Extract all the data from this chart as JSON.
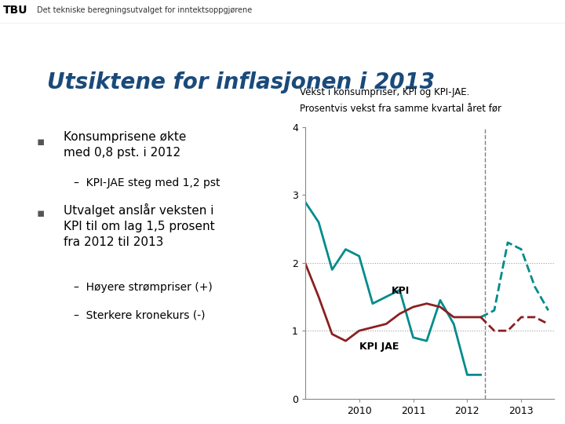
{
  "title_main": "Utsiktene for inflasjonen i 2013",
  "header_bold": "TBU",
  "header_text": "Det tekniske beregningsutvalget for inntektsoppgjørene",
  "bg_color": "#f0f4f8",
  "slide_bg": "#ffffff",
  "left_panel_bg": "#ffffff",
  "bullet1_main": "Konsumprisene økte\nmed 0,8 pst. i 2012",
  "bullet1_sub": "KPI-JAE steg med 1,2 pst",
  "bullet2_main": "Utvalget anslår veksten i\nKPI til om lag 1,5 prosent\nfra 2012 til 2013",
  "bullet2_sub1": "Høyere strømpriser (+)",
  "bullet2_sub2": "Sterkere kronekurs (-)",
  "chart_title_line1": "Vekst i konsumpriser, KPI og KPI-JAE.",
  "chart_title_line2": "Prosentvis vekst fra samme kvartal året før",
  "kpi_color": "#008B8B",
  "kpi_jae_color": "#8B2020",
  "kpi_forecast_color": "#008B8B",
  "kpi_jae_forecast_color": "#8B2020",
  "vline_color": "#808080",
  "grid_color": "#a0a0a0",
  "title_color": "#1a4a7a",
  "kpi_x": [
    2009.0,
    2009.25,
    2009.5,
    2009.75,
    2010.0,
    2010.25,
    2010.5,
    2010.75,
    2011.0,
    2011.25,
    2011.5,
    2011.75,
    2012.0,
    2012.25
  ],
  "kpi_y": [
    2.9,
    2.6,
    1.9,
    2.2,
    2.1,
    1.4,
    1.5,
    1.6,
    0.9,
    0.85,
    1.45,
    1.1,
    0.35,
    0.35
  ],
  "kpi_jae_x": [
    2009.0,
    2009.25,
    2009.5,
    2009.75,
    2010.0,
    2010.25,
    2010.5,
    2010.75,
    2011.0,
    2011.25,
    2011.5,
    2011.75,
    2012.0,
    2012.25
  ],
  "kpi_jae_y": [
    2.0,
    1.5,
    0.95,
    0.85,
    1.0,
    1.05,
    1.1,
    1.25,
    1.35,
    1.4,
    1.35,
    1.2,
    1.2,
    1.2
  ],
  "kpi_forecast_x": [
    2012.25,
    2012.5,
    2012.75,
    2013.0,
    2013.25,
    2013.5
  ],
  "kpi_forecast_y": [
    1.2,
    1.3,
    2.3,
    2.2,
    1.65,
    1.3
  ],
  "kpi_jae_forecast_x": [
    2012.25,
    2012.5,
    2012.75,
    2013.0,
    2013.25,
    2013.5
  ],
  "kpi_jae_forecast_y": [
    1.2,
    1.0,
    1.0,
    1.2,
    1.2,
    1.1
  ],
  "vline_x": 2012.33,
  "ylim": [
    0,
    4
  ],
  "xlim_left": 2009.0,
  "xlim_right": 2013.6,
  "yticks": [
    0,
    1,
    2,
    3,
    4
  ],
  "xticks": [
    2010,
    2011,
    2012,
    2013
  ],
  "kpi_label": "KPI",
  "kpi_jae_label": "KPI JAE"
}
